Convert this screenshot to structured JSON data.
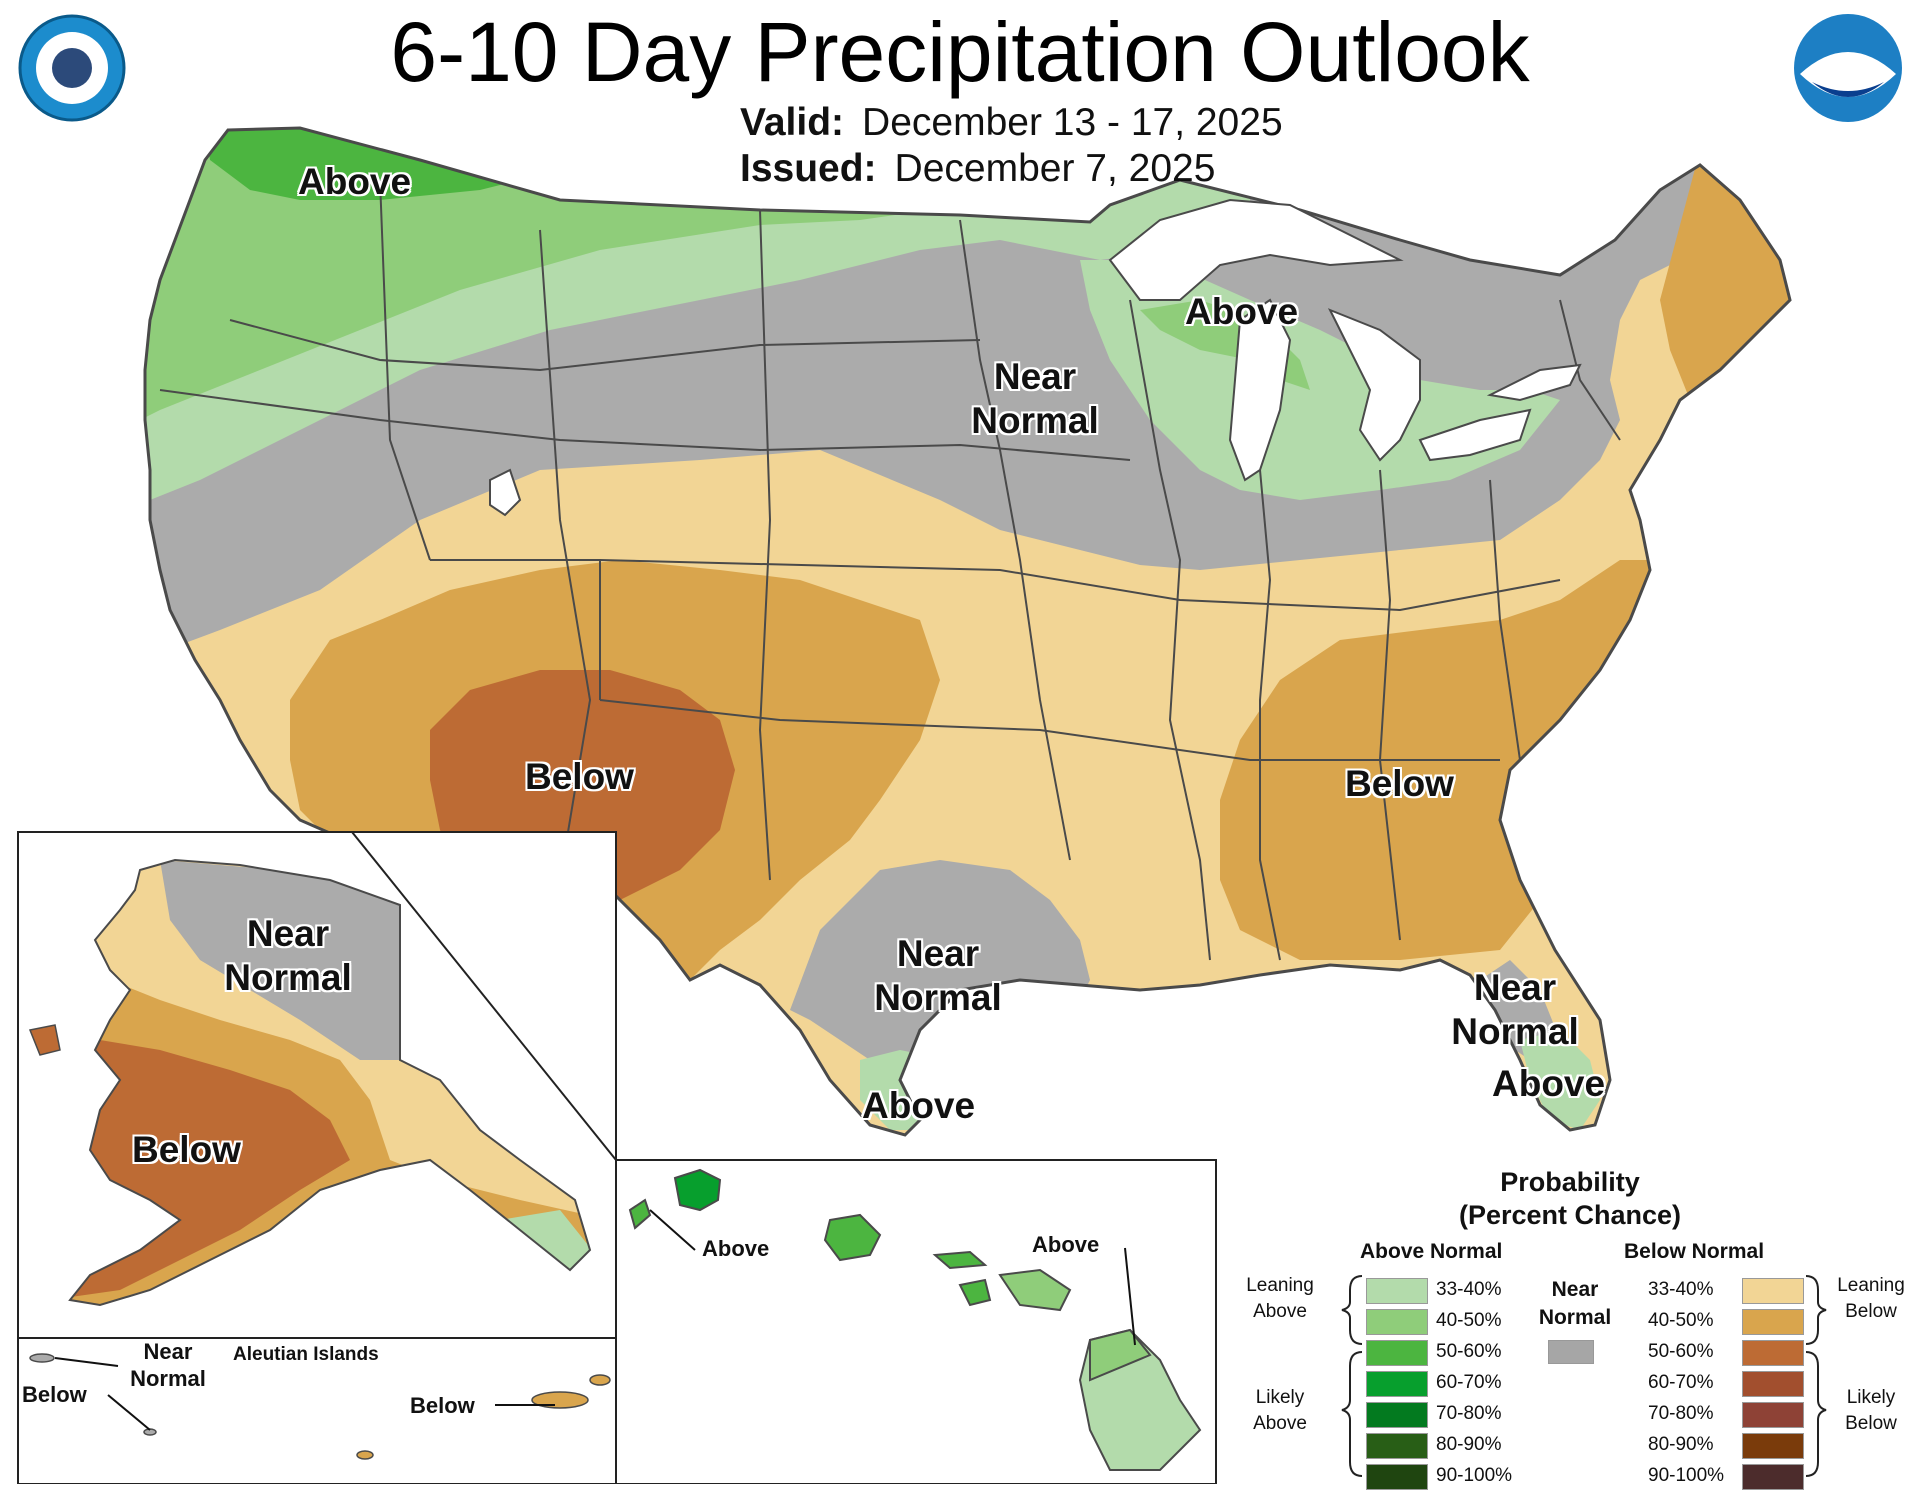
{
  "title": "6-10 Day Precipitation Outlook",
  "valid_label": "Valid:",
  "valid_dates": "December 13 - 17, 2025",
  "issued_label": "Issued:",
  "issued_date": "December 7, 2025",
  "logos": {
    "left": "Department of Commerce seal",
    "right": "NOAA logo"
  },
  "labels": {
    "northwest": "Above",
    "great_lakes": "Above",
    "near_normal_plains_1": "Near",
    "near_normal_plains_2": "Normal",
    "southwest": "Below",
    "southeast": "Below",
    "texas_1": "Near",
    "texas_2": "Normal",
    "south_texas": "Above",
    "florida_1": "Near",
    "florida_2": "Normal",
    "south_florida": "Above",
    "alaska_near_1": "Near",
    "alaska_near_2": "Normal",
    "alaska_below": "Below",
    "aleutian_title": "Aleutian Islands",
    "aleutian_near_1": "Near",
    "aleutian_near_2": "Normal",
    "aleutian_below_west": "Below",
    "aleutian_below_east": "Below",
    "hawaii_above_west": "Above",
    "hawaii_above_east": "Above"
  },
  "legend": {
    "title_1": "Probability",
    "title_2": "(Percent Chance)",
    "above_header": "Above Normal",
    "below_header": "Below Normal",
    "near_1": "Near",
    "near_2": "Normal",
    "leaning_above_1": "Leaning",
    "leaning_above_2": "Above",
    "likely_above_1": "Likely",
    "likely_above_2": "Above",
    "leaning_below_1": "Leaning",
    "leaning_below_2": "Below",
    "likely_below_1": "Likely",
    "likely_below_2": "Below",
    "above_bins": [
      {
        "range": "33-40%",
        "color": "#b3dbab"
      },
      {
        "range": "40-50%",
        "color": "#8fcd7a"
      },
      {
        "range": "50-60%",
        "color": "#4cb540"
      },
      {
        "range": "60-70%",
        "color": "#079f2d"
      },
      {
        "range": "70-80%",
        "color": "#037a1f"
      },
      {
        "range": "80-90%",
        "color": "#285e16"
      },
      {
        "range": "90-100%",
        "color": "#1f4510"
      }
    ],
    "below_bins": [
      {
        "range": "33-40%",
        "color": "#f2d595"
      },
      {
        "range": "40-50%",
        "color": "#d9a54d"
      },
      {
        "range": "50-60%",
        "color": "#bd6b34"
      },
      {
        "range": "60-70%",
        "color": "#a24f2e"
      },
      {
        "range": "70-80%",
        "color": "#8e4236"
      },
      {
        "range": "80-90%",
        "color": "#7a3b0b"
      },
      {
        "range": "90-100%",
        "color": "#4c2c2c"
      }
    ],
    "near_color": "#a6a6a6"
  },
  "colors": {
    "near_normal": "#ababab",
    "above_33_40": "#b3dbab",
    "above_40_50": "#8fcd7a",
    "above_50_60": "#4cb540",
    "above_60_70": "#079f2d",
    "below_33_40": "#f2d595",
    "below_40_50": "#d9a54d",
    "below_50_60": "#bd6b34",
    "water": "#ffffff",
    "state_lines": "#4a4a4a"
  }
}
